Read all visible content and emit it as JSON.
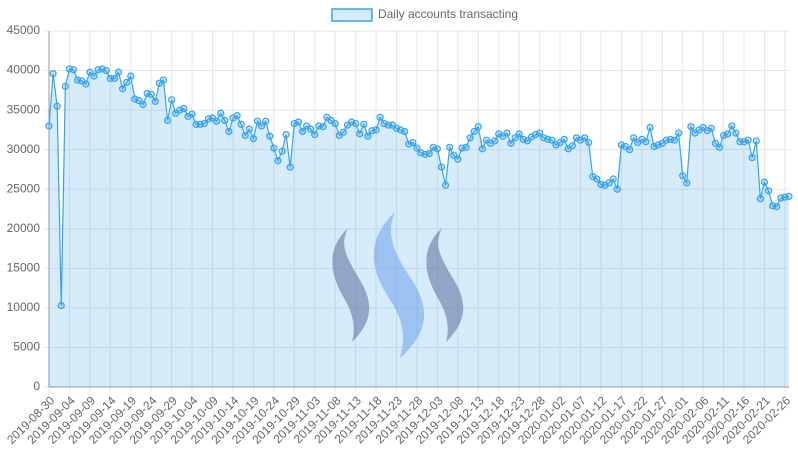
{
  "chart_data": {
    "type": "line",
    "categories": [
      "2019-08-30",
      null,
      null,
      null,
      null,
      "2019-09-04",
      null,
      null,
      null,
      null,
      "2019-09-09",
      null,
      null,
      null,
      null,
      "2019-09-14",
      null,
      null,
      null,
      null,
      "2019-09-19",
      null,
      null,
      null,
      null,
      "2019-09-24",
      null,
      null,
      null,
      null,
      "2019-09-29",
      null,
      null,
      null,
      null,
      "2019-10-04",
      null,
      null,
      null,
      null,
      "2019-10-09",
      null,
      null,
      null,
      null,
      "2019-10-14",
      null,
      null,
      null,
      null,
      "2019-10-19",
      null,
      null,
      null,
      null,
      "2019-10-24",
      null,
      null,
      null,
      null,
      "2019-10-29",
      null,
      null,
      null,
      null,
      "2019-11-03",
      null,
      null,
      null,
      null,
      "2019-11-08",
      null,
      null,
      null,
      null,
      "2019-11-13",
      null,
      null,
      null,
      null,
      "2019-11-18",
      null,
      null,
      null,
      null,
      "2019-11-23",
      null,
      null,
      null,
      null,
      "2019-11-28",
      null,
      null,
      null,
      null,
      "2019-12-03",
      null,
      null,
      null,
      null,
      "2019-12-08",
      null,
      null,
      null,
      null,
      "2019-12-13",
      null,
      null,
      null,
      null,
      "2019-12-18",
      null,
      null,
      null,
      null,
      "2019-12-23",
      null,
      null,
      null,
      null,
      "2019-12-28",
      null,
      null,
      null,
      null,
      "2020-01-02",
      null,
      null,
      null,
      null,
      "2020-01-07",
      null,
      null,
      null,
      null,
      "2020-01-12",
      null,
      null,
      null,
      null,
      "2020-01-17",
      null,
      null,
      null,
      null,
      "2020-01-22",
      null,
      null,
      null,
      null,
      "2020-01-27",
      null,
      null,
      null,
      null,
      "2020-02-01",
      null,
      null,
      null,
      null,
      "2020-02-06",
      null,
      null,
      null,
      null,
      "2020-02-11",
      null,
      null,
      null,
      null,
      "2020-02-16",
      null,
      null,
      null,
      null,
      "2020-02-21",
      null,
      null,
      null,
      null,
      "2020-02-26",
      null
    ],
    "series": [
      {
        "name": "Daily accounts transacting",
        "color": "#36a2eb",
        "values": [
          33000,
          39600,
          35500,
          10300,
          38000,
          40200,
          40100,
          38800,
          38700,
          38300,
          39800,
          39300,
          40100,
          40200,
          40000,
          39000,
          39000,
          39800,
          37700,
          38500,
          39300,
          36400,
          36200,
          35700,
          37100,
          37000,
          36100,
          38400,
          38800,
          33700,
          36300,
          34600,
          35000,
          35200,
          34200,
          34500,
          33200,
          33200,
          33300,
          33900,
          34000,
          33600,
          34600,
          33700,
          32300,
          34000,
          34300,
          33200,
          31800,
          32600,
          31400,
          33600,
          33000,
          33600,
          31700,
          30200,
          28600,
          29800,
          31900,
          27800,
          33300,
          33500,
          32300,
          33000,
          32600,
          31900,
          33000,
          32900,
          34100,
          33700,
          33300,
          31800,
          32200,
          33100,
          33500,
          33300,
          32000,
          33200,
          31700,
          32400,
          32500,
          34100,
          33300,
          33100,
          33100,
          32700,
          32500,
          32300,
          30700,
          30900,
          30200,
          29600,
          29400,
          29500,
          30300,
          30100,
          27800,
          25500,
          30300,
          29300,
          28800,
          30200,
          30300,
          31500,
          32300,
          32900,
          30100,
          31200,
          30800,
          31100,
          32000,
          31700,
          32100,
          30800,
          31500,
          32000,
          31300,
          31100,
          31600,
          31900,
          32100,
          31500,
          31300,
          31200,
          30600,
          30900,
          31300,
          30100,
          30500,
          31500,
          31200,
          31500,
          30900,
          26600,
          26300,
          25600,
          25500,
          25800,
          26300,
          25000,
          30600,
          30400,
          30000,
          31500,
          30900,
          31300,
          31000,
          32800,
          30400,
          30600,
          30800,
          31200,
          31300,
          31200,
          32100,
          26700,
          25800,
          32900,
          32100,
          32500,
          32800,
          32400,
          32700,
          30800,
          30300,
          31800,
          32000,
          33000,
          32100,
          31000,
          31000,
          31200,
          29000,
          31100,
          23800,
          25900,
          24800,
          22900,
          22800,
          23900,
          24000,
          24100
        ]
      }
    ],
    "ylim": [
      0,
      45000
    ],
    "yticks": [
      0,
      5000,
      10000,
      15000,
      20000,
      25000,
      30000,
      35000,
      40000,
      45000
    ],
    "grid": true
  }
}
